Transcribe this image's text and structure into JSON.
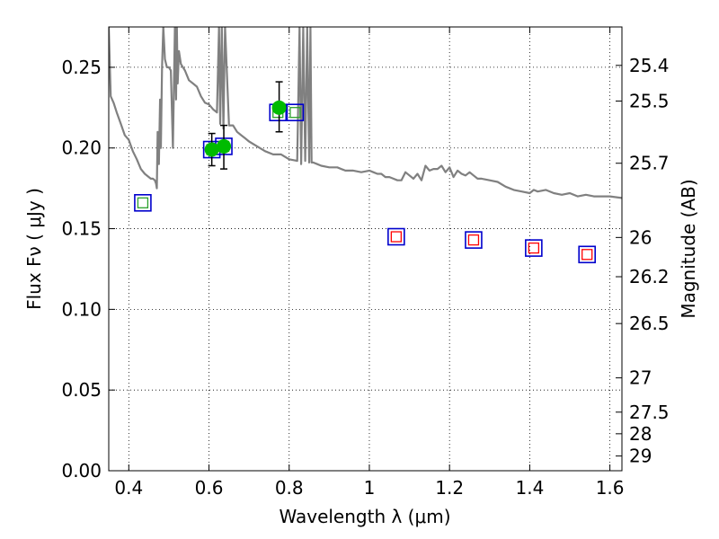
{
  "chart_data": {
    "type": "scatter",
    "xlabel": "Wavelength  λ (μm)",
    "ylabel": "Flux  Fν  ( μJy )",
    "ylabel_right": "Magnitude (AB)",
    "xlim": [
      0.35,
      1.63
    ],
    "ylim": [
      0.0,
      0.275
    ],
    "grid": true,
    "x_ticks": [
      0.4,
      0.6,
      0.8,
      1.0,
      1.2,
      1.4,
      1.6
    ],
    "x_tick_labels": [
      "0.4",
      "0.6",
      "0.8",
      "1",
      "1.2",
      "1.4",
      "1.6"
    ],
    "y_ticks": [
      0.0,
      0.05,
      0.1,
      0.15,
      0.2,
      0.25
    ],
    "y_tick_labels": [
      "0.00",
      "0.05",
      "0.10",
      "0.15",
      "0.20",
      "0.25"
    ],
    "right_ticks": [
      {
        "mag": 25.4,
        "label": "25.4"
      },
      {
        "mag": 25.5,
        "label": "25.5"
      },
      {
        "mag": 25.7,
        "label": "25.7"
      },
      {
        "mag": 26.0,
        "label": "26"
      },
      {
        "mag": 26.2,
        "label": "26.2"
      },
      {
        "mag": 26.5,
        "label": "26.5"
      },
      {
        "mag": 27.0,
        "label": "27"
      },
      {
        "mag": 27.5,
        "label": "27.5"
      },
      {
        "mag": 28.0,
        "label": "28"
      },
      {
        "mag": 29.0,
        "label": "29"
      }
    ],
    "series": [
      {
        "kind": "model_spectrum",
        "color": "#808080",
        "x": [
          0.35,
          0.355,
          0.362,
          0.37,
          0.38,
          0.39,
          0.4,
          0.41,
          0.42,
          0.43,
          0.44,
          0.45,
          0.455,
          0.46,
          0.465,
          0.468,
          0.47,
          0.472,
          0.475,
          0.478,
          0.48,
          0.483,
          0.486,
          0.49,
          0.495,
          0.5,
          0.505,
          0.51,
          0.515,
          0.518,
          0.52,
          0.522,
          0.525,
          0.53,
          0.54,
          0.55,
          0.56,
          0.57,
          0.58,
          0.59,
          0.6,
          0.61,
          0.62,
          0.625,
          0.628,
          0.632,
          0.636,
          0.64,
          0.65,
          0.66,
          0.67,
          0.68,
          0.69,
          0.7,
          0.72,
          0.74,
          0.76,
          0.78,
          0.8,
          0.82,
          0.826,
          0.83,
          0.835,
          0.84,
          0.845,
          0.85,
          0.853,
          0.856,
          0.86,
          0.87,
          0.88,
          0.9,
          0.92,
          0.94,
          0.96,
          0.98,
          1.0,
          1.01,
          1.02,
          1.03,
          1.04,
          1.05,
          1.06,
          1.07,
          1.08,
          1.09,
          1.1,
          1.11,
          1.12,
          1.13,
          1.14,
          1.15,
          1.16,
          1.17,
          1.18,
          1.19,
          1.2,
          1.21,
          1.22,
          1.23,
          1.24,
          1.25,
          1.26,
          1.27,
          1.28,
          1.3,
          1.32,
          1.34,
          1.36,
          1.38,
          1.4,
          1.41,
          1.42,
          1.44,
          1.46,
          1.48,
          1.5,
          1.52,
          1.54,
          1.56,
          1.58,
          1.6,
          1.63
        ],
        "y": [
          0.275,
          0.232,
          0.228,
          0.222,
          0.215,
          0.208,
          0.205,
          0.198,
          0.193,
          0.187,
          0.184,
          0.182,
          0.181,
          0.181,
          0.18,
          0.178,
          0.175,
          0.21,
          0.19,
          0.23,
          0.2,
          0.25,
          0.275,
          0.255,
          0.25,
          0.25,
          0.248,
          0.2,
          0.275,
          0.23,
          0.275,
          0.24,
          0.26,
          0.252,
          0.248,
          0.242,
          0.24,
          0.238,
          0.232,
          0.228,
          0.227,
          0.224,
          0.222,
          0.275,
          0.215,
          0.275,
          0.212,
          0.275,
          0.214,
          0.214,
          0.21,
          0.208,
          0.206,
          0.204,
          0.201,
          0.198,
          0.196,
          0.196,
          0.193,
          0.192,
          0.275,
          0.19,
          0.275,
          0.192,
          0.275,
          0.191,
          0.275,
          0.191,
          0.191,
          0.19,
          0.189,
          0.188,
          0.188,
          0.186,
          0.186,
          0.185,
          0.186,
          0.185,
          0.184,
          0.184,
          0.182,
          0.182,
          0.181,
          0.18,
          0.18,
          0.185,
          0.183,
          0.181,
          0.184,
          0.18,
          0.189,
          0.186,
          0.187,
          0.187,
          0.189,
          0.185,
          0.188,
          0.182,
          0.186,
          0.184,
          0.183,
          0.185,
          0.183,
          0.181,
          0.181,
          0.18,
          0.179,
          0.176,
          0.174,
          0.173,
          0.172,
          0.174,
          0.173,
          0.174,
          0.172,
          0.171,
          0.172,
          0.17,
          0.171,
          0.17,
          0.17,
          0.17,
          0.169
        ]
      },
      {
        "kind": "model_boxes_green",
        "edge": "#0000cc",
        "inner": "#2aa02a",
        "x": [
          0.435,
          0.607,
          0.637,
          0.772,
          0.815
        ],
        "y": [
          0.166,
          0.199,
          0.201,
          0.222,
          0.222
        ]
      },
      {
        "kind": "model_boxes_red",
        "edge": "#0000cc",
        "inner": "#ff0000",
        "x": [
          1.067,
          1.26,
          1.41,
          1.543
        ],
        "y": [
          0.145,
          0.143,
          0.138,
          0.134
        ]
      },
      {
        "kind": "observed",
        "color": "#00bb00",
        "x": [
          0.607,
          0.637,
          0.775
        ],
        "y": [
          0.199,
          0.201,
          0.225
        ],
        "err_low": [
          0.01,
          0.014,
          0.015
        ],
        "err_high": [
          0.01,
          0.013,
          0.016
        ]
      }
    ]
  }
}
